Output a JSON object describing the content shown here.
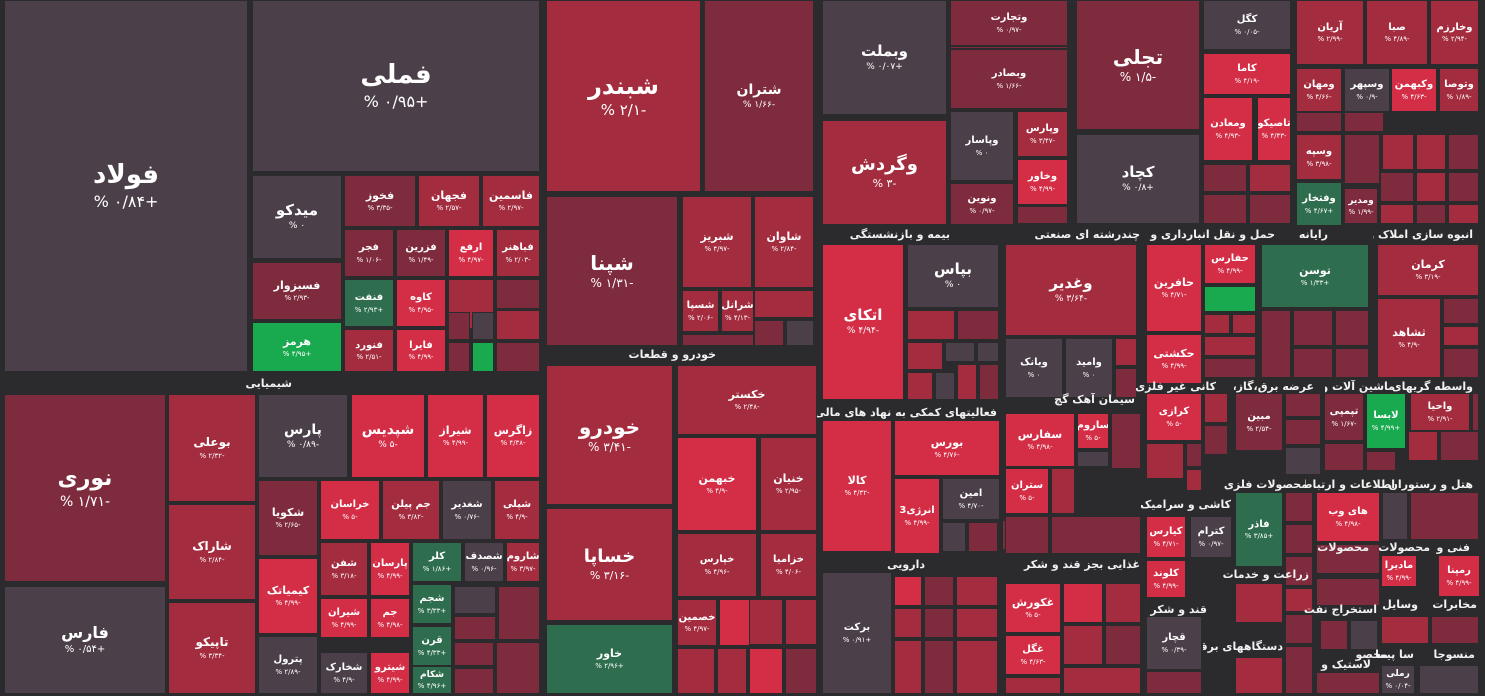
{
  "chart_data": {
    "type": "treemap",
    "colors": {
      "gray": "#4b4049",
      "dark_red": "#7f2b3e",
      "red": "#a42c3f",
      "bright_red": "#d42e47",
      "green": "#2e6e4e",
      "bright_green": "#19a94f",
      "background": "#2b2b2d"
    },
    "sectors": [
      {
        "label": "شیمیایی"
      },
      {
        "label": "خودرو و قطعات"
      },
      {
        "label": "بیمه و بازنشستگی"
      },
      {
        "label": "چندرشته ای صنعتی"
      },
      {
        "label": "حمل و نقل انبارداری و"
      },
      {
        "label": "رایانه"
      },
      {
        "label": "انبوه سازی املاک و"
      },
      {
        "label": "فعالیتهای کمکی به نهاد های مالی واسط"
      },
      {
        "label": "سیمان آهک گچ"
      },
      {
        "label": "کانی غیر فلزی"
      },
      {
        "label": "عرضه برق،گاز،بخار"
      },
      {
        "label": "ماشین آلات و"
      },
      {
        "label": "واسطه گریهای"
      },
      {
        "label": "کاشی و سرامیک"
      },
      {
        "label": "محصولات فلزی"
      },
      {
        "label": "اطلاعات و ارتباطات"
      },
      {
        "label": "هتل و رستوران"
      },
      {
        "label": "محصولات"
      },
      {
        "label": "محصولات"
      },
      {
        "label": "فنی و"
      },
      {
        "label": "دارویی"
      },
      {
        "label": "غذایی بجز قند و شکر"
      },
      {
        "label": "زراعت و خدمات"
      },
      {
        "label": "قند و شکر"
      },
      {
        "label": "استخراج نفت"
      },
      {
        "label": "وسایل"
      },
      {
        "label": "مخابرات"
      },
      {
        "label": "دستگاههای برقی"
      },
      {
        "label": "سا پیما"
      },
      {
        "label": "منسوجا"
      },
      {
        "label": "محصو"
      },
      {
        "label": "لاستیک و"
      }
    ],
    "tiles": [
      {
        "name": "فولاد",
        "change": "+۰/۸۴ %",
        "color": "gray"
      },
      {
        "name": "فملی",
        "change": "+۰/۹۵ %",
        "color": "gray"
      },
      {
        "name": "میدکو",
        "change": "۰ %",
        "color": "gray"
      },
      {
        "name": "فخوز",
        "change": "-۳/۳۵ %",
        "color": "dark_red"
      },
      {
        "name": "فجهان",
        "change": "-۲/۵۷ %",
        "color": "red"
      },
      {
        "name": "فاسمین",
        "change": "-۲/۹۷ %",
        "color": "red"
      },
      {
        "name": "فسبزوار",
        "change": "-۲/۹۳ %",
        "color": "dark_red"
      },
      {
        "name": "فجر",
        "change": "-۱/۰۶ %",
        "color": "dark_red"
      },
      {
        "name": "فزرین",
        "change": "-۱/۴۹ %",
        "color": "dark_red"
      },
      {
        "name": "ارفع",
        "change": "-۴/۹۷ %",
        "color": "bright_red"
      },
      {
        "name": "فباهنر",
        "change": "-۲/۰۳ %",
        "color": "red"
      },
      {
        "name": "هرمز",
        "change": "+۴/۹۵ %",
        "color": "bright_green"
      },
      {
        "name": "فنفت",
        "change": "+۲/۹۳ %",
        "color": "green"
      },
      {
        "name": "کاوه",
        "change": "-۴/۹۵ %",
        "color": "bright_red"
      },
      {
        "name": "فنورد",
        "change": "-۲/۵۱ %",
        "color": "red"
      },
      {
        "name": "فایرا",
        "change": "-۴/۹۹ %",
        "color": "bright_red"
      },
      {
        "name": "شبندر",
        "change": "-۲/۱ %",
        "color": "red"
      },
      {
        "name": "شتران",
        "change": "-۱/۶۶ %",
        "color": "dark_red"
      },
      {
        "name": "شپنا",
        "change": "-۱/۳۱ %",
        "color": "dark_red"
      },
      {
        "name": "شبریز",
        "change": "-۴/۹۷ %",
        "color": "red"
      },
      {
        "name": "شاوان",
        "change": "-۲/۸۴ %",
        "color": "red"
      },
      {
        "name": "شسپا",
        "change": "-۲/۰۶ %",
        "color": "red"
      },
      {
        "name": "شرانل",
        "change": "-۴/۱۳ %",
        "color": "red"
      },
      {
        "name": "وبملت",
        "change": "+۰/۰۷ %",
        "color": "gray"
      },
      {
        "name": "وتجارت",
        "change": "-۰/۹۷ %",
        "color": "dark_red"
      },
      {
        "name": "وبصادر",
        "change": "-۱/۶۶ %",
        "color": "dark_red"
      },
      {
        "name": "تجلی",
        "change": "-۱/۵ %",
        "color": "dark_red"
      },
      {
        "name": "کگل",
        "change": "-۰/۰۵ %",
        "color": "gray"
      },
      {
        "name": "کاما",
        "change": "-۴/۱۹ %",
        "color": "bright_red"
      },
      {
        "name": "تاصیکو",
        "change": "-۴/۴۳ %",
        "color": "bright_red"
      },
      {
        "name": "ومعادن",
        "change": "-۴/۹۳ %",
        "color": "bright_red"
      },
      {
        "name": "وگردش",
        "change": "-۳ %",
        "color": "red"
      },
      {
        "name": "وپاسار",
        "change": "۰ %",
        "color": "gray"
      },
      {
        "name": "وپارس",
        "change": "-۳/۴۷ %",
        "color": "red"
      },
      {
        "name": "وخاور",
        "change": "-۴/۹۹ %",
        "color": "bright_red"
      },
      {
        "name": "ونوین",
        "change": "-۰/۹۷ %",
        "color": "dark_red"
      },
      {
        "name": "کچاد",
        "change": "+۰/۸ %",
        "color": "gray"
      },
      {
        "name": "آریان",
        "change": "-۲/۹۹ %",
        "color": "red"
      },
      {
        "name": "صبا",
        "change": "-۴/۸۹ %",
        "color": "red"
      },
      {
        "name": "وخارزم",
        "change": "-۲/۹۴ %",
        "color": "red"
      },
      {
        "name": "ومهان",
        "change": "-۴/۶۶ %",
        "color": "red"
      },
      {
        "name": "وسپهر",
        "change": "-۰/۹ %",
        "color": "gray"
      },
      {
        "name": "وکبهمن",
        "change": "-۴/۶۳ %",
        "color": "bright_red"
      },
      {
        "name": "وتوصا",
        "change": "-۱/۸۹ %",
        "color": "red"
      },
      {
        "name": "وسپه",
        "change": "-۳/۹۸ %",
        "color": "red"
      },
      {
        "name": "وفتخار",
        "change": "+۴/۶۷ %",
        "color": "green"
      },
      {
        "name": "ومدیر",
        "change": "-۱/۹۹ %",
        "color": "dark_red"
      },
      {
        "name": "نوری",
        "change": "-۱/۷۱ %",
        "color": "dark_red"
      },
      {
        "name": "بوعلی",
        "change": "-۲/۳۲ %",
        "color": "red"
      },
      {
        "name": "شاراک",
        "change": "-۲/۸۴ %",
        "color": "red"
      },
      {
        "name": "تاپیکو",
        "change": "-۳/۳۴ %",
        "color": "red"
      },
      {
        "name": "فارس",
        "change": "+۰/۵۴ %",
        "color": "gray"
      },
      {
        "name": "پارس",
        "change": "-۰/۸۹ %",
        "color": "gray"
      },
      {
        "name": "شپدیس",
        "change": "-۵ %",
        "color": "bright_red"
      },
      {
        "name": "شیراز",
        "change": "-۴/۹۹ %",
        "color": "bright_red"
      },
      {
        "name": "زاگرس",
        "change": "-۴/۳۸ %",
        "color": "bright_red"
      },
      {
        "name": "شکویا",
        "change": "-۲/۶۵ %",
        "color": "dark_red"
      },
      {
        "name": "خراسان",
        "change": "-۵ %",
        "color": "bright_red"
      },
      {
        "name": "جم پیلن",
        "change": "-۳/۸۲ %",
        "color": "red"
      },
      {
        "name": "شغدیر",
        "change": "-۰/۷۶ %",
        "color": "gray"
      },
      {
        "name": "شپلی",
        "change": "-۴/۹ %",
        "color": "red"
      },
      {
        "name": "کیمیاتک",
        "change": "-۴/۹۹ %",
        "color": "bright_red"
      },
      {
        "name": "شفن",
        "change": "-۳/۱۸ %",
        "color": "red"
      },
      {
        "name": "پارسان",
        "change": "-۴/۹۹ %",
        "color": "bright_red"
      },
      {
        "name": "کلر",
        "change": "+۱/۸۶ %",
        "color": "green"
      },
      {
        "name": "شصدف",
        "change": "-۰/۹۶ %",
        "color": "gray"
      },
      {
        "name": "شاروم",
        "change": "-۳/۹۷ %",
        "color": "red"
      },
      {
        "name": "شیران",
        "change": "-۴/۹۹ %",
        "color": "bright_red"
      },
      {
        "name": "جم",
        "change": "-۴/۹۸ %",
        "color": "bright_red"
      },
      {
        "name": "شجم",
        "change": "+۳/۳۳ %",
        "color": "green"
      },
      {
        "name": "قرن",
        "change": "+۴/۳۳ %",
        "color": "green"
      },
      {
        "name": "پترول",
        "change": "-۲/۸۹ %",
        "color": "gray"
      },
      {
        "name": "شخارک",
        "change": "-۴/۹ %",
        "color": "gray"
      },
      {
        "name": "شیترو",
        "change": "-۴/۹۹ %",
        "color": "bright_red"
      },
      {
        "name": "شکام",
        "change": "+۴/۹۶ %",
        "color": "green"
      },
      {
        "name": "خودرو",
        "change": "-۳/۴۱ %",
        "color": "red"
      },
      {
        "name": "خکستر",
        "change": "-۲/۴۸ %",
        "color": "red"
      },
      {
        "name": "خبهمن",
        "change": "-۴/۹ %",
        "color": "bright_red"
      },
      {
        "name": "خنیان",
        "change": "-۲/۹۵ %",
        "color": "red"
      },
      {
        "name": "خساپا",
        "change": "-۳/۱۶ %",
        "color": "red"
      },
      {
        "name": "خپارس",
        "change": "-۴/۹۶ %",
        "color": "red"
      },
      {
        "name": "خزامیا",
        "change": "-۴/۰۶ %",
        "color": "red"
      },
      {
        "name": "خاور",
        "change": "+۲/۹۶ %",
        "color": "green"
      },
      {
        "name": "خصمین",
        "change": "-۴/۹۷ %",
        "color": "red"
      },
      {
        "name": "اتکای",
        "change": "-۴/۹۴ %",
        "color": "bright_red"
      },
      {
        "name": "بپاس",
        "change": "۰ %",
        "color": "gray"
      },
      {
        "name": "وبانک",
        "change": "۰ %",
        "color": "gray"
      },
      {
        "name": "وامید",
        "change": "۰ %",
        "color": "gray"
      },
      {
        "name": "وغدیر",
        "change": "-۳/۶۴ %",
        "color": "red"
      },
      {
        "name": "حافرین",
        "change": "-۴/۷۱ %",
        "color": "bright_red"
      },
      {
        "name": "حفارس",
        "change": "-۴/۹۹ %",
        "color": "bright_red"
      },
      {
        "name": "حکشتی",
        "change": "-۴/۹۹ %",
        "color": "bright_red"
      },
      {
        "name": "توسن",
        "change": "+۱/۳۳ %",
        "color": "green"
      },
      {
        "name": "کرمان",
        "change": "-۳/۱۹ %",
        "color": "red"
      },
      {
        "name": "ثشاهد",
        "change": "-۴/۹ %",
        "color": "red"
      },
      {
        "name": "بورس",
        "change": "-۴/۷۶ %",
        "color": "bright_red"
      },
      {
        "name": "کالا",
        "change": "-۴/۳۲ %",
        "color": "bright_red"
      },
      {
        "name": "امین",
        "change": "-۴/۷۰ %",
        "color": "gray"
      },
      {
        "name": "انرژی3",
        "change": "-۴/۹۹ %",
        "color": "bright_red"
      },
      {
        "name": "سفارس",
        "change": "-۴/۹۸ %",
        "color": "bright_red"
      },
      {
        "name": "ساروم",
        "change": "-۵ %",
        "color": "bright_red"
      },
      {
        "name": "ستران",
        "change": "-۵ %",
        "color": "bright_red"
      },
      {
        "name": "کرازی",
        "change": "-۵ %",
        "color": "bright_red"
      },
      {
        "name": "مبین",
        "change": "-۲/۵۴ %",
        "color": "dark_red"
      },
      {
        "name": "تپمپی",
        "change": "-۱/۶۷ %",
        "color": "dark_red"
      },
      {
        "name": "لابسا",
        "change": "+۴/۹۹ %",
        "color": "bright_green"
      },
      {
        "name": "واحیا",
        "change": "-۲/۹۱ %",
        "color": "red"
      },
      {
        "name": "کیارس",
        "change": "-۴/۷۱ %",
        "color": "bright_red"
      },
      {
        "name": "کترام",
        "change": "-۰/۹۷ %",
        "color": "gray"
      },
      {
        "name": "فاذر",
        "change": "+۳/۸۵ %",
        "color": "green"
      },
      {
        "name": "های وب",
        "change": "-۴/۹۸ %",
        "color": "bright_red"
      },
      {
        "name": "کلوند",
        "change": "-۴/۹۹ %",
        "color": "bright_red"
      },
      {
        "name": "برکت",
        "change": "+۰/۹۱ %",
        "color": "gray"
      },
      {
        "name": "غکورش",
        "change": "-۵ %",
        "color": "bright_red"
      },
      {
        "name": "غگل",
        "change": "-۴/۶۳ %",
        "color": "bright_red"
      },
      {
        "name": "قچار",
        "change": "-۰/۳۹ %",
        "color": "gray"
      },
      {
        "name": "مادیرا",
        "change": "-۴/۹۹ %",
        "color": "bright_red"
      },
      {
        "name": "رمپنا",
        "change": "-۴/۹۹ %",
        "color": "bright_red"
      },
      {
        "name": "رملی",
        "change": "-۰/۰۴ %",
        "color": "gray"
      }
    ]
  }
}
